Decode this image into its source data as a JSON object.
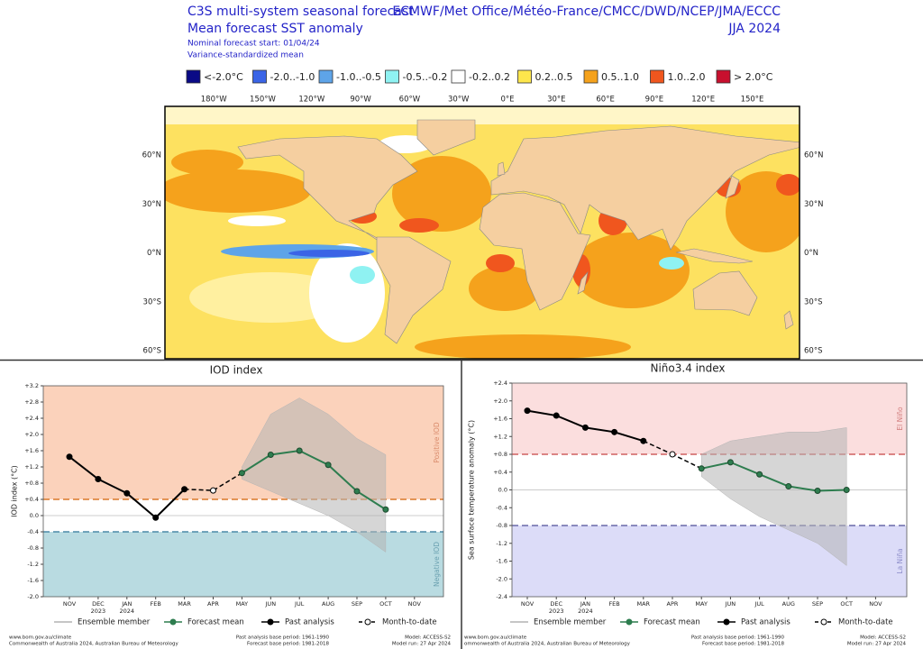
{
  "map": {
    "title": [
      "C3S multi-system seasonal forecast",
      "Mean forecast SST anomaly"
    ],
    "subtitle": [
      "Nominal forecast start: 01/04/24",
      "Variance-standardized mean"
    ],
    "centres": "ECMWF/Met Office/Météo-France/CMCC/DWD/NCEP/JMA/ECCC",
    "season": "JJA 2024",
    "legend": [
      {
        "label": "<-2.0°C",
        "color": "#0a0a86"
      },
      {
        "label": "-2.0..-1.0",
        "color": "#3a64e6"
      },
      {
        "label": "-1.0..-0.5",
        "color": "#5ea4e8"
      },
      {
        "label": "-0.5..-0.2",
        "color": "#8ff2f2"
      },
      {
        "label": "-0.2..0.2",
        "color": "#ffffff"
      },
      {
        "label": "0.2..0.5",
        "color": "#fde64c"
      },
      {
        "label": "0.5..1.0",
        "color": "#f5a21c"
      },
      {
        "label": "1.0..2.0",
        "color": "#f0561e"
      },
      {
        "label": "> 2.0°C",
        "color": "#c8102e"
      }
    ],
    "lon_labels": [
      "180°W",
      "150°W",
      "120°W",
      "90°W",
      "60°W",
      "30°W",
      "0°E",
      "30°E",
      "60°E",
      "90°E",
      "120°E",
      "150°E"
    ],
    "lat_labels": [
      "60°N",
      "30°N",
      "0°N",
      "30°S",
      "60°S"
    ]
  },
  "chart_data": [
    {
      "type": "line",
      "title": "IOD index",
      "ylabel": "IOD index (°C)",
      "categories": [
        "NOV",
        "DEC",
        "JAN",
        "FEB",
        "MAR",
        "APR",
        "MAY",
        "JUN",
        "JUL",
        "AUG",
        "SEP",
        "OCT",
        "NOV"
      ],
      "years": [
        "2023",
        "2024"
      ],
      "ylim": [
        -2.0,
        3.2
      ],
      "yticks": [
        {
          "value": 3.2,
          "label": "+3.2"
        },
        {
          "value": 2.8,
          "label": "+2.8"
        },
        {
          "value": 2.4,
          "label": "+2.4"
        },
        {
          "value": 2.0,
          "label": "+2.0"
        },
        {
          "value": 1.6,
          "label": "+1.6"
        },
        {
          "value": 1.2,
          "label": "+1.2"
        },
        {
          "value": 0.8,
          "label": "+0.8"
        },
        {
          "value": 0.4,
          "label": "+0.4"
        },
        {
          "value": 0,
          "label": "0.0"
        },
        -0.4,
        -0.8,
        -1.2,
        -1.6,
        {
          "value": -2.0,
          "label": "-2.0"
        }
      ],
      "thresholds": [
        {
          "value": 0.4,
          "color": "#d9782a"
        },
        {
          "value": -0.4,
          "color": "#4b8aa8"
        }
      ],
      "regions": [
        {
          "label": "Positive IOD",
          "color": "#fbd2bb",
          "text_color": "#d98a6a"
        },
        {
          "label": "Negative IOD",
          "color": "#b9dbe1",
          "text_color": "#6aa0b0"
        }
      ],
      "ensemble": {
        "name": "Ensemble member",
        "color": "#b4b4b4",
        "low": [
          null,
          null,
          null,
          null,
          null,
          null,
          0.9,
          0.6,
          0.3,
          0.0,
          -0.4,
          -0.9,
          null
        ],
        "high": [
          null,
          null,
          null,
          null,
          null,
          null,
          1.2,
          2.5,
          2.9,
          2.5,
          1.9,
          1.5,
          null
        ]
      },
      "series": [
        {
          "name": "Forecast mean",
          "color": "#2e7d4f",
          "marker": "filled",
          "values": [
            null,
            null,
            null,
            null,
            null,
            null,
            1.05,
            1.5,
            1.6,
            1.25,
            0.6,
            0.15,
            null
          ]
        },
        {
          "name": "Past analysis",
          "color": "#000000",
          "marker": "filled",
          "values": [
            1.45,
            0.9,
            0.55,
            -0.05,
            0.65,
            null,
            null,
            null,
            null,
            null,
            null,
            null,
            null
          ]
        },
        {
          "name": "Month-to-date",
          "color": "#000000",
          "marker": "open",
          "dash": true,
          "values": [
            null,
            null,
            null,
            null,
            null,
            0.62,
            null,
            null,
            null,
            null,
            null,
            null,
            null
          ]
        }
      ],
      "footer": {
        "source": "www.bom.gov.au/climate",
        "copyright": "Commonwealth of Australia 2024, Australian Bureau of Meteorology",
        "past_base": "Past analysis base period: 1961-1990",
        "forecast_base": "Forecast base period: 1981-2018",
        "model": "Model: ACCESS-S2",
        "model_run": "Model run: 27 Apr 2024"
      }
    },
    {
      "type": "line",
      "title": "Niño3.4 index",
      "ylabel": "Sea surface temperature anomaly (°C)",
      "categories": [
        "NOV",
        "DEC",
        "JAN",
        "FEB",
        "MAR",
        "APR",
        "MAY",
        "JUN",
        "JUL",
        "AUG",
        "SEP",
        "OCT",
        "NOV"
      ],
      "years": [
        "2023",
        "2024"
      ],
      "ylim": [
        -2.4,
        2.4
      ],
      "yticks": [
        {
          "value": 2.4,
          "label": "+2.4"
        },
        {
          "value": 2.0,
          "label": "+2.0"
        },
        {
          "value": 1.6,
          "label": "+1.6"
        },
        {
          "value": 1.2,
          "label": "+1.2"
        },
        {
          "value": 0.8,
          "label": "+0.8"
        },
        {
          "value": 0.4,
          "label": "+0.4"
        },
        {
          "value": 0,
          "label": "0.0"
        },
        -0.4,
        -0.8,
        -1.2,
        -1.6,
        {
          "value": -2.0,
          "label": "-2.0"
        },
        -2.4
      ],
      "thresholds": [
        {
          "value": 0.8,
          "color": "#d06060"
        },
        {
          "value": -0.8,
          "color": "#6a6aa8"
        }
      ],
      "regions": [
        {
          "label": "El Niño",
          "color": "#fbdede",
          "text_color": "#d07a7a"
        },
        {
          "label": "La Niña",
          "color": "#dcdcf8",
          "text_color": "#8a8ac8"
        }
      ],
      "ensemble": {
        "name": "Ensemble member",
        "color": "#b4b4b4",
        "low": [
          null,
          null,
          null,
          null,
          null,
          null,
          0.3,
          -0.2,
          -0.6,
          -0.9,
          -1.2,
          -1.7,
          null
        ],
        "high": [
          null,
          null,
          null,
          null,
          null,
          null,
          0.8,
          1.1,
          1.2,
          1.3,
          1.3,
          1.4,
          null
        ]
      },
      "series": [
        {
          "name": "Forecast mean",
          "color": "#2e7d4f",
          "marker": "filled",
          "values": [
            null,
            null,
            null,
            null,
            null,
            null,
            0.48,
            0.62,
            0.35,
            0.08,
            -0.02,
            0.0,
            null
          ]
        },
        {
          "name": "Past analysis",
          "color": "#000000",
          "marker": "filled",
          "values": [
            1.78,
            1.67,
            1.4,
            1.3,
            1.1,
            null,
            null,
            null,
            null,
            null,
            null,
            null,
            null
          ]
        },
        {
          "name": "Month-to-date",
          "color": "#000000",
          "marker": "open",
          "dash": true,
          "values": [
            null,
            null,
            null,
            null,
            null,
            0.8,
            null,
            null,
            null,
            null,
            null,
            null,
            null
          ]
        }
      ],
      "footer": {
        "source": "www.bom.gov.au/climate",
        "copyright": "ommonwealth of Australia 2024, Australian Bureau of Meteorology",
        "past_base": "Past analysis base period: 1961-1990",
        "forecast_base": "Forecast base period: 1981-2018",
        "model": "Model: ACCESS-S2",
        "model_run": "Model run: 27 Apr 2024"
      }
    }
  ]
}
